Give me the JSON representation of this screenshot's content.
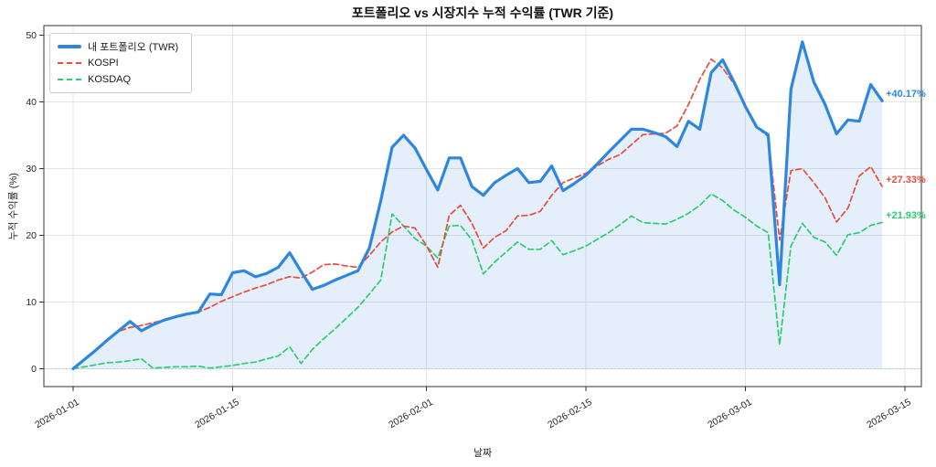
{
  "chart_data": {
    "type": "line",
    "title": "포트폴리오 vs 시장지수 누적 수익률 (TWR 기준)",
    "xlabel": "날짜",
    "ylabel": "누적 수익률 (%)",
    "start_date": "2026-01-01",
    "frequency": "daily",
    "ylim": [
      -2.7,
      51.3
    ],
    "yticks": [
      0,
      10,
      20,
      30,
      40,
      50
    ],
    "xticks": [
      {
        "label": "2026-01-01",
        "day": 0
      },
      {
        "label": "2026-01-15",
        "day": 14
      },
      {
        "label": "2026-02-01",
        "day": 31
      },
      {
        "label": "2026-02-15",
        "day": 45
      },
      {
        "label": "2026-03-01",
        "day": 59
      },
      {
        "label": "2026-03-15",
        "day": 73
      }
    ],
    "grid": true,
    "grid_color": "#e4e4e4",
    "baseline": {
      "value": 0,
      "style": "dotted",
      "color": "#abc6dd"
    },
    "legend_position": "upper-left",
    "series": [
      {
        "name": "내 포트폴리오 (TWR)",
        "color": "#2e86de",
        "style": "solid",
        "width": 3.2,
        "fill": true,
        "fill_color": "rgba(46,134,222,0.13)",
        "final_label": "+40.17%",
        "values": [
          0.0,
          1.4,
          2.8,
          4.3,
          5.7,
          7.1,
          5.7,
          6.6,
          7.3,
          7.8,
          8.2,
          8.5,
          11.2,
          11.1,
          14.4,
          14.7,
          13.8,
          14.3,
          15.2,
          17.4,
          14.6,
          11.9,
          12.5,
          13.3,
          14.0,
          14.7,
          18.1,
          25.2,
          33.2,
          35.0,
          33.1,
          29.9,
          26.8,
          31.6,
          31.6,
          27.3,
          26.0,
          27.9,
          29.0,
          30.0,
          27.9,
          28.1,
          30.4,
          26.7,
          27.8,
          29.0,
          30.7,
          32.5,
          34.2,
          35.9,
          35.9,
          35.4,
          34.8,
          33.3,
          37.1,
          35.9,
          44.4,
          46.3,
          43.0,
          39.3,
          36.2,
          35.1,
          12.6,
          41.9,
          49.0,
          43.0,
          39.6,
          35.2,
          37.3,
          37.1,
          42.6,
          40.17
        ]
      },
      {
        "name": "KOSPI",
        "color": "#e74c3c",
        "style": "dashed",
        "width": 1.7,
        "fill": false,
        "final_label": "+27.33%",
        "values": [
          0.0,
          1.4,
          2.9,
          4.3,
          5.6,
          6.2,
          6.5,
          6.9,
          7.3,
          7.7,
          8.1,
          8.5,
          9.2,
          10.1,
          10.8,
          11.5,
          12.1,
          12.6,
          13.3,
          13.8,
          13.6,
          14.5,
          15.6,
          15.7,
          15.4,
          15.2,
          17.0,
          19.0,
          20.5,
          21.4,
          21.1,
          18.5,
          15.2,
          23.0,
          24.5,
          21.8,
          18.1,
          19.7,
          20.7,
          22.9,
          23.0,
          23.6,
          26.0,
          27.9,
          28.6,
          29.3,
          30.4,
          31.4,
          32.1,
          33.6,
          35.1,
          35.2,
          35.3,
          36.4,
          39.6,
          43.4,
          46.4,
          45.1,
          42.7,
          39.2,
          36.2,
          34.8,
          19.3,
          29.7,
          30.0,
          27.9,
          25.6,
          22.0,
          24.1,
          28.9,
          30.3,
          27.33
        ]
      },
      {
        "name": "KOSDAQ",
        "color": "#2ecc71",
        "style": "dashed",
        "width": 1.7,
        "fill": false,
        "final_label": "+21.93%",
        "values": [
          0.0,
          0.3,
          0.6,
          0.9,
          1.0,
          1.2,
          1.5,
          0.1,
          0.2,
          0.3,
          0.3,
          0.4,
          0.1,
          0.3,
          0.5,
          0.8,
          1.0,
          1.5,
          1.9,
          3.3,
          0.8,
          2.9,
          4.5,
          6.0,
          7.6,
          9.2,
          11.2,
          13.3,
          23.2,
          21.4,
          19.5,
          18.4,
          16.6,
          21.4,
          21.5,
          19.3,
          14.2,
          16.0,
          17.5,
          19.0,
          17.9,
          17.9,
          19.2,
          17.1,
          17.7,
          18.4,
          19.4,
          20.4,
          21.6,
          22.9,
          21.9,
          21.8,
          21.7,
          22.4,
          23.3,
          24.5,
          26.2,
          25.2,
          23.8,
          22.7,
          21.4,
          20.4,
          3.6,
          18.4,
          21.8,
          19.7,
          19.0,
          17.0,
          20.1,
          20.4,
          21.5,
          21.93
        ]
      }
    ]
  }
}
